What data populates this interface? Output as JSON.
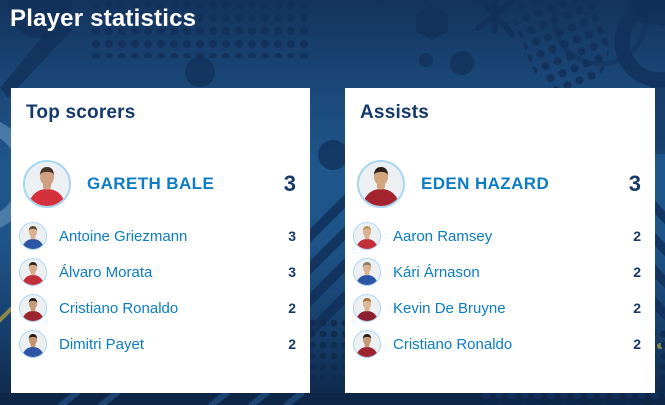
{
  "header": {
    "title": "Player statistics"
  },
  "colors": {
    "background_blue": "#1f578c",
    "pattern_navy": "#12305a",
    "card_background": "#ffffff",
    "card_title_navy": "#15396b",
    "player_name_blue": "#0c7cc4",
    "value_navy": "#17386b",
    "avatar_ring_blue": "#a6d6f2",
    "header_text": "#ffffff"
  },
  "cards": [
    {
      "id": "top-scorers",
      "title": "Top scorers",
      "leader": {
        "name": "GARETH BALE",
        "value": "3",
        "jersey": "#d5313c",
        "skin": "#cfa183",
        "hair": "#4a3626"
      },
      "rows": [
        {
          "name": "Antoine Griezmann",
          "value": "3",
          "jersey": "#2d55a5",
          "skin": "#d9b294",
          "hair": "#5a4632"
        },
        {
          "name": "Álvaro Morata",
          "value": "3",
          "jersey": "#c22f3a",
          "skin": "#d6ac8c",
          "hair": "#2e241c"
        },
        {
          "name": "Cristiano Ronaldo",
          "value": "2",
          "jersey": "#9c2531",
          "skin": "#c79a76",
          "hair": "#241c16"
        },
        {
          "name": "Dimitri Payet",
          "value": "2",
          "jersey": "#2d55a5",
          "skin": "#c3946e",
          "hair": "#241c16"
        }
      ]
    },
    {
      "id": "assists",
      "title": "Assists",
      "leader": {
        "name": "EDEN HAZARD",
        "value": "3",
        "jersey": "#a3242f",
        "skin": "#d2a780",
        "hair": "#2a2018"
      },
      "rows": [
        {
          "name": "Aaron Ramsey",
          "value": "2",
          "jersey": "#c22f3a",
          "skin": "#d9b294",
          "hair": "#b99a5e"
        },
        {
          "name": "Kári Árnason",
          "value": "2",
          "jersey": "#2d55a5",
          "skin": "#d9b294",
          "hair": "#8a7a62"
        },
        {
          "name": "Kevin De Bruyne",
          "value": "2",
          "jersey": "#8d2030",
          "skin": "#dcb696",
          "hair": "#a96a3a"
        },
        {
          "name": "Cristiano Ronaldo",
          "value": "2",
          "jersey": "#9c2531",
          "skin": "#c79a76",
          "hair": "#241c16"
        }
      ]
    }
  ]
}
